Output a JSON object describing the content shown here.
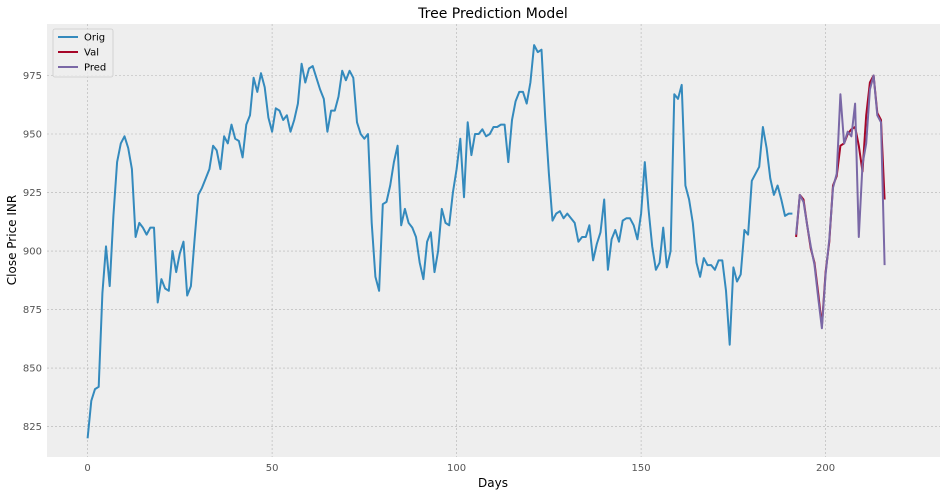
{
  "chart_data": {
    "type": "line",
    "title": "Tree Prediction Model",
    "xlabel": "Days",
    "ylabel": "Close Price INR",
    "xlim": [
      -11,
      231
    ],
    "ylim": [
      812,
      997
    ],
    "xticks": [
      0,
      50,
      100,
      150,
      200
    ],
    "yticks": [
      825,
      850,
      875,
      900,
      925,
      950,
      975
    ],
    "grid": true,
    "legend_position": "top-left",
    "series": [
      {
        "name": "Orig",
        "color": "#348abd",
        "x_start": 0,
        "values": [
          820,
          836,
          841,
          842,
          882,
          902,
          885,
          915,
          938,
          946,
          949,
          944,
          935,
          906,
          912,
          910,
          907,
          910,
          910,
          878,
          888,
          884,
          883,
          900,
          891,
          899,
          904,
          881,
          885,
          905,
          924,
          927,
          931,
          935,
          945,
          943,
          935,
          949,
          946,
          954,
          948,
          947,
          940,
          954,
          958,
          974,
          968,
          976,
          970,
          957,
          951,
          961,
          960,
          956,
          958,
          951,
          956,
          963,
          980,
          972,
          978,
          979,
          974,
          969,
          965,
          951,
          960,
          960,
          966,
          977,
          973,
          977,
          974,
          955,
          950,
          948,
          950,
          912,
          889,
          883,
          920,
          921,
          928,
          938,
          945,
          911,
          918,
          912,
          910,
          906,
          895,
          888,
          904,
          908,
          891,
          900,
          918,
          912,
          911,
          925,
          935,
          948,
          923,
          955,
          941,
          950,
          950,
          952,
          949,
          950,
          953,
          953,
          954,
          954,
          938,
          956,
          964,
          968,
          968,
          963,
          972,
          988,
          985,
          986,
          957,
          933,
          913,
          916,
          917,
          914,
          916,
          914,
          912,
          904,
          906,
          906,
          911,
          896,
          903,
          908,
          922,
          892,
          905,
          909,
          904,
          913,
          914,
          914,
          911,
          905,
          916,
          938,
          918,
          902,
          892,
          895,
          910,
          893,
          900,
          967,
          965,
          971,
          928,
          922,
          912,
          895,
          889,
          897,
          894,
          894,
          892,
          896,
          896,
          883,
          860,
          893,
          887,
          890,
          909,
          907,
          930,
          933,
          936,
          953,
          944,
          931,
          924,
          928,
          922,
          915,
          916,
          916
        ]
      },
      {
        "name": "Val",
        "color": "#a60628",
        "x_start": 192,
        "values": [
          906,
          924,
          922,
          911,
          901,
          895,
          882,
          868,
          891,
          904,
          928,
          932,
          945,
          946,
          950,
          952,
          953,
          945,
          934,
          958,
          972,
          975,
          959,
          956,
          922
        ]
      },
      {
        "name": "Pred",
        "color": "#7a68a6",
        "x_start": 192,
        "values": [
          907,
          924,
          921,
          911,
          902,
          894,
          880,
          867,
          890,
          905,
          927,
          933,
          967,
          946,
          951,
          949,
          963,
          906,
          937,
          946,
          969,
          975,
          958,
          955,
          894
        ]
      }
    ]
  }
}
